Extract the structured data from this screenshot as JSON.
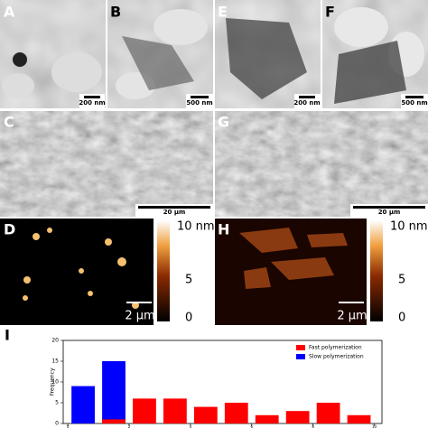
{
  "panels": [
    {
      "label": "A",
      "scale": "200 nm"
    },
    {
      "label": "B",
      "scale": "500 nm"
    },
    {
      "label": "E",
      "scale": "200 nm"
    },
    {
      "label": "F",
      "scale": "500 nm"
    },
    {
      "label": "C",
      "scale": "20 μm"
    },
    {
      "label": "G",
      "scale": "20 μm"
    },
    {
      "label": "D",
      "scale": "2 μm",
      "colorbar": [
        "10 nm",
        "5",
        "0"
      ]
    },
    {
      "label": "H",
      "scale": "2 μm",
      "colorbar": [
        "10 nm",
        "5",
        "0"
      ]
    }
  ],
  "chart_data": {
    "type": "histogram",
    "label": "I",
    "ylabel": "Frequency",
    "bins": [
      0,
      1,
      2,
      3,
      4,
      5,
      6,
      7,
      8,
      9,
      10
    ],
    "series": [
      {
        "name": "Slow polymerization",
        "color": "#0000ff",
        "values": [
          9,
          15,
          0,
          0,
          0,
          0,
          0,
          0,
          0,
          0
        ]
      },
      {
        "name": "Fast polymerization",
        "color": "#ff0000",
        "values": [
          0,
          1,
          6,
          6,
          4,
          5,
          2,
          3,
          5,
          2
        ]
      }
    ],
    "xlim": [
      -0.15,
      10.25
    ],
    "xticks": [
      0,
      2,
      4,
      6,
      8,
      10
    ],
    "ylim": [
      0,
      20
    ],
    "yticks": [
      0,
      5,
      10,
      15,
      20
    ],
    "legend": "upper right"
  }
}
